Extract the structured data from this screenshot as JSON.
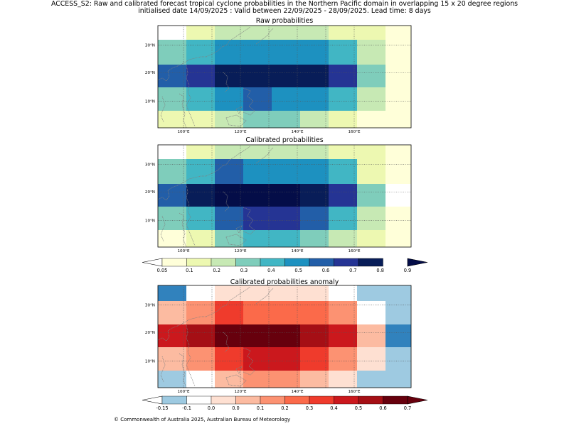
{
  "title_line1": "ACCESS_S2: Raw and calibrated forecast tropical cyclone probabilities in the Northern Pacific domain in overlapping 15 x 20 degree regions",
  "title_line2": "initialised date 14/09/2025 :  Valid between 22/09/2025 - 28/09/2025. Lead time: 8 days",
  "footer": "© Commonwealth of Australia 2025, Australian Bureau of Meteorology",
  "lon_ticks": [
    "100°E",
    "120°E",
    "140°E",
    "160°E"
  ],
  "lat_ticks": [
    "30°N",
    "20°N",
    "10°N"
  ],
  "colors": {
    "prob": [
      "#ffffd9",
      "#edf8b1",
      "#c7e9b4",
      "#7fcdbb",
      "#41b6c4",
      "#1d91c0",
      "#225ea8",
      "#253494",
      "#081d58",
      "#040d48"
    ],
    "anom": [
      "#3182bd",
      "#9ecae1",
      "#ffffff",
      "#fee0d2",
      "#fcbba1",
      "#fc9272",
      "#fb6a4a",
      "#ef3b2c",
      "#cb181d",
      "#a50f15",
      "#67000d"
    ]
  },
  "chart_data": [
    {
      "type": "heatmap",
      "title": "Raw probabilities",
      "grid": [
        [
          -1,
          1,
          2,
          2,
          2,
          2,
          1,
          1,
          0
        ],
        [
          3,
          4,
          5,
          5,
          5,
          5,
          4,
          2,
          0
        ],
        [
          6,
          7,
          8,
          8,
          8,
          8,
          7,
          3,
          0
        ],
        [
          3,
          4,
          5,
          6,
          5,
          5,
          4,
          2,
          0
        ],
        [
          1,
          1,
          2,
          3,
          3,
          2,
          1,
          0,
          0
        ]
      ]
    },
    {
      "type": "heatmap",
      "title": "Calibrated probabilities",
      "grid": [
        [
          -1,
          1,
          2,
          2,
          2,
          2,
          1,
          1,
          0
        ],
        [
          3,
          4,
          6,
          5,
          5,
          5,
          4,
          1,
          0
        ],
        [
          6,
          8,
          9,
          9,
          9,
          8,
          7,
          3,
          -1
        ],
        [
          3,
          4,
          6,
          7,
          7,
          6,
          4,
          2,
          0
        ],
        [
          0,
          1,
          3,
          4,
          4,
          3,
          2,
          1,
          0
        ]
      ]
    },
    {
      "type": "heatmap",
      "title": "Calibrated probabilities anomaly",
      "grid": [
        [
          0,
          2,
          3,
          3,
          3,
          3,
          2,
          1,
          1
        ],
        [
          4,
          5,
          7,
          6,
          6,
          6,
          5,
          2,
          1
        ],
        [
          8,
          9,
          10,
          10,
          10,
          9,
          8,
          4,
          0
        ],
        [
          4,
          5,
          7,
          8,
          8,
          7,
          5,
          3,
          1
        ],
        [
          1,
          2,
          4,
          5,
          5,
          4,
          3,
          1,
          1
        ]
      ]
    }
  ],
  "colorbar_prob_labels": [
    "0.05",
    "0.1",
    "0.2",
    "0.3",
    "0.4",
    "0.5",
    "0.6",
    "0.7",
    "0.8",
    "0.9"
  ],
  "colorbar_anom_labels": [
    "-0.15",
    "-0.1",
    "0.0",
    "0.0",
    "0.1",
    "0.2",
    "0.3",
    "0.4",
    "0.5",
    "0.6",
    "0.7"
  ]
}
